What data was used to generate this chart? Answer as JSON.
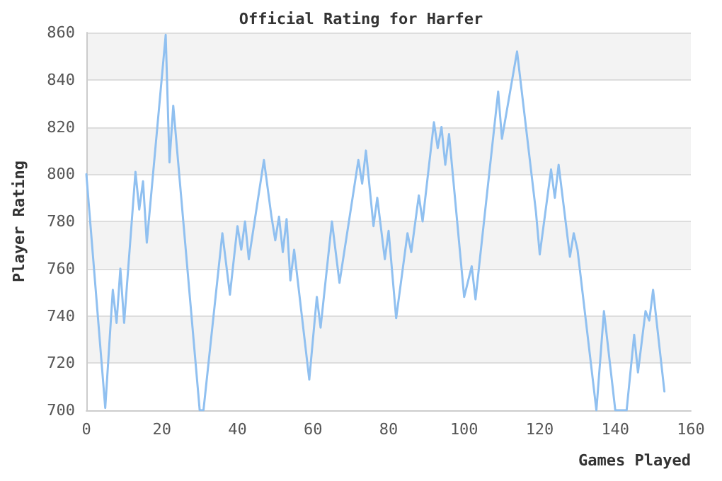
{
  "chart_data": {
    "type": "line",
    "title": "Official Rating for Harfer",
    "xlabel": "Games Played",
    "ylabel": "Player Rating",
    "x": [
      0,
      5,
      7,
      8,
      9,
      10,
      13,
      14,
      15,
      16,
      21,
      22,
      23,
      30,
      31,
      36,
      38,
      40,
      41,
      42,
      43,
      47,
      49,
      50,
      51,
      52,
      53,
      54,
      55,
      59,
      61,
      62,
      65,
      67,
      72,
      73,
      74,
      76,
      77,
      79,
      80,
      82,
      85,
      86,
      88,
      89,
      92,
      93,
      94,
      95,
      96,
      100,
      102,
      103,
      109,
      110,
      114,
      119,
      120,
      123,
      124,
      125,
      128,
      129,
      130,
      135,
      137,
      140,
      143,
      145,
      146,
      148,
      149,
      150,
      153
    ],
    "series": [
      {
        "color": "#90c0f0",
        "values": [
          800,
          701,
          751,
          737,
          760,
          737,
          801,
          785,
          797,
          771,
          859,
          805,
          829,
          700,
          700,
          775,
          749,
          778,
          768,
          780,
          764,
          806,
          782,
          772,
          782,
          767,
          781,
          755,
          768,
          713,
          748,
          735,
          780,
          754,
          806,
          796,
          810,
          778,
          790,
          764,
          776,
          739,
          775,
          767,
          791,
          780,
          822,
          811,
          820,
          804,
          817,
          748,
          761,
          747,
          835,
          815,
          852,
          784,
          766,
          802,
          790,
          804,
          765,
          775,
          768,
          700,
          742,
          700,
          700,
          732,
          716,
          742,
          738,
          751,
          708
        ]
      }
    ],
    "xlim": [
      0,
      160
    ],
    "xticks": [
      0,
      20,
      40,
      60,
      80,
      100,
      120,
      140,
      160
    ],
    "ylim": [
      700,
      860
    ],
    "yticks": [
      700,
      720,
      740,
      760,
      780,
      800,
      820,
      840,
      860
    ],
    "grid": "y",
    "marker": "none",
    "line_style": "solid"
  }
}
